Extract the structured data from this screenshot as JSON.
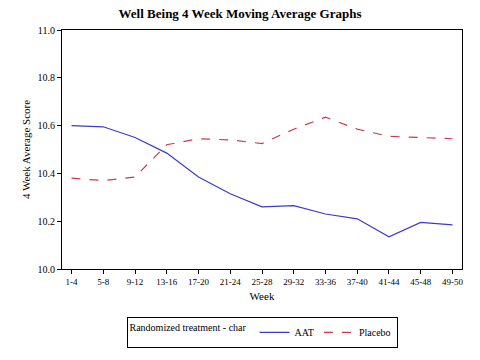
{
  "chart_data": {
    "type": "line",
    "title": "Well Being 4 Week Moving Average Graphs",
    "x_label": "Week",
    "y_label": "4 Week Average Score",
    "legend_title": "Randomized treatment - char",
    "categories": [
      "1-4",
      "5-8",
      "9-12",
      "13-16",
      "17-20",
      "21-24",
      "25-28",
      "29-32",
      "33-36",
      "37-40",
      "41-44",
      "45-48",
      "49-50"
    ],
    "series": [
      {
        "name": "AAT",
        "color": "#3a3acc",
        "line_style": "solid",
        "values": [
          10.6,
          10.595,
          10.55,
          10.485,
          10.385,
          10.315,
          10.26,
          10.265,
          10.23,
          10.21,
          10.135,
          10.195,
          10.185
        ]
      },
      {
        "name": "Placebo",
        "color": "#cc3a4a",
        "line_style": "dash",
        "values": [
          10.38,
          10.37,
          10.385,
          10.52,
          10.545,
          10.54,
          10.525,
          10.585,
          10.635,
          10.585,
          10.555,
          10.55,
          10.545
        ]
      }
    ],
    "ylim": [
      10.0,
      11.0
    ],
    "yticks": [
      {
        "value": 10.0,
        "label": "10.0"
      },
      10.2,
      10.4,
      10.6,
      10.8,
      {
        "value": 11.0,
        "label": "11.0"
      }
    ],
    "grid": false,
    "legend": "bottom"
  }
}
